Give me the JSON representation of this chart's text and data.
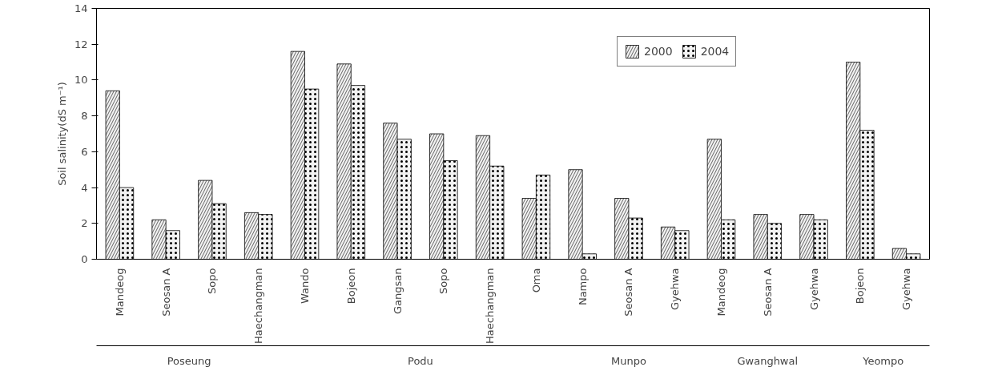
{
  "chart_data": {
    "type": "bar",
    "ylabel": "Soil salinity(dS m⁻¹)",
    "categories": [
      "Mandeog",
      "Seosan A",
      "Sopo",
      "Haechangman",
      "Wando",
      "Bojeon",
      "Gangsan",
      "Sopo",
      "Haechangman",
      "Oma",
      "Nampo",
      "Seosan A",
      "Gyehwa",
      "Mandeog",
      "Seosan A",
      "Gyehwa",
      "Bojeon",
      "Gyehwa"
    ],
    "series": [
      {
        "name": "2000",
        "color": "#f2f2f2",
        "values": [
          9.4,
          2.2,
          4.4,
          2.6,
          11.6,
          10.9,
          7.6,
          7.0,
          6.9,
          3.4,
          5.0,
          3.4,
          1.8,
          6.7,
          2.5,
          2.5,
          11.0,
          0.6
        ]
      },
      {
        "name": "2004",
        "color": "#f2f2f2",
        "values": [
          4.0,
          1.6,
          3.1,
          2.5,
          9.5,
          9.7,
          6.7,
          5.5,
          5.2,
          4.7,
          0.3,
          2.3,
          1.6,
          2.2,
          2.0,
          2.2,
          7.2,
          0.3
        ]
      }
    ],
    "annotations": [
      "Poseung",
      "Podu",
      "Munpo",
      "Gwanghwal",
      "Yeompo"
    ],
    "ylim": [
      0,
      14
    ],
    "yticks": [
      0,
      2,
      4,
      6,
      8,
      10,
      12,
      14
    ],
    "grid": false,
    "legend": "top right"
  }
}
